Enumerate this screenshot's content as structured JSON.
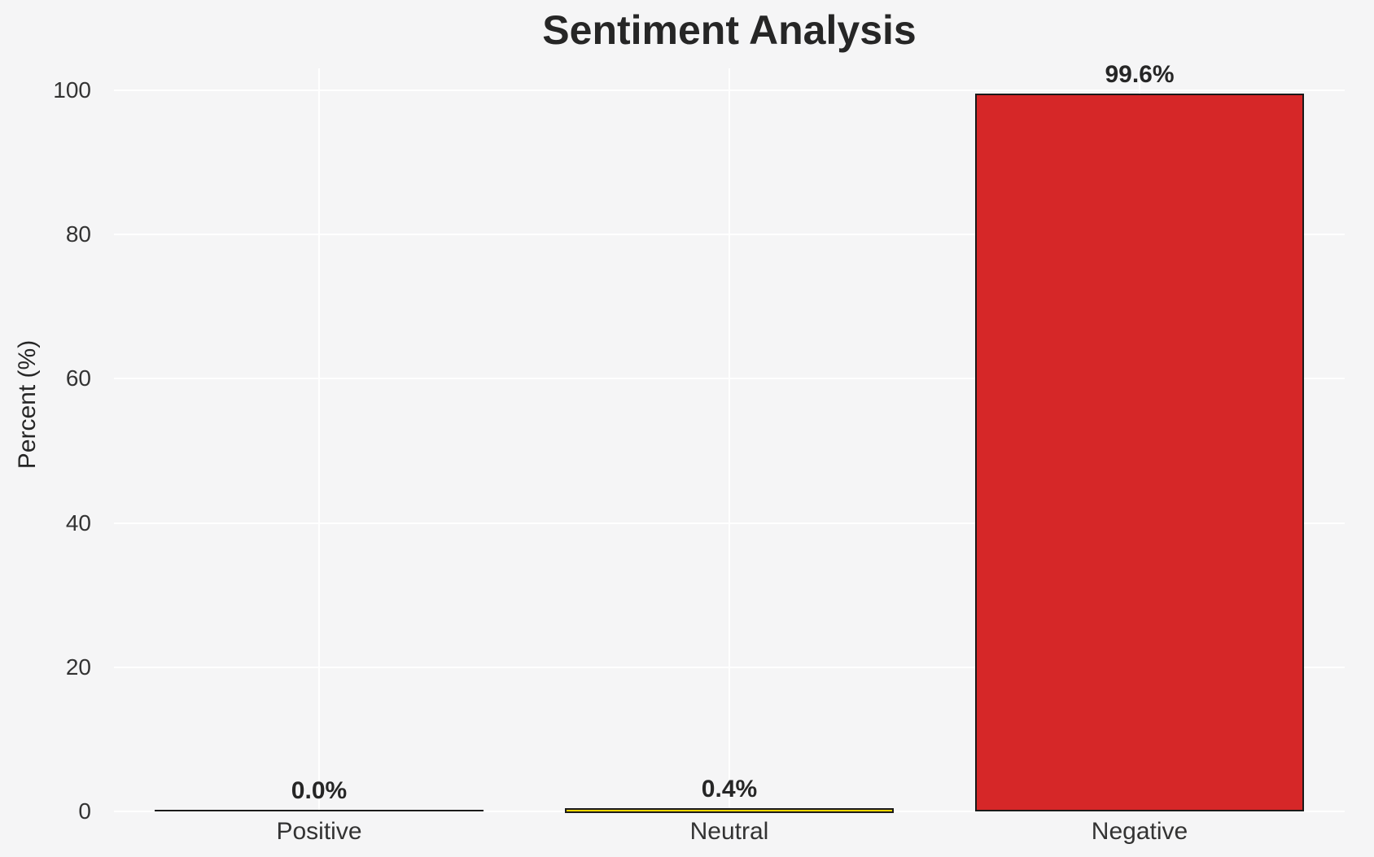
{
  "figure": {
    "background_color": "#f5f5f6",
    "grid_color": "#ffffff",
    "text_color": "#262626",
    "tick_text_color": "#333333",
    "bar_edge_color": "#1a1a1a"
  },
  "chart_data": {
    "type": "bar",
    "title": "Sentiment Analysis",
    "xlabel": "",
    "ylabel": "Percent (%)",
    "categories": [
      "Positive",
      "Neutral",
      "Negative"
    ],
    "values": [
      0.0,
      0.4,
      99.6
    ],
    "value_labels": [
      "0.0%",
      "0.4%",
      "99.6%"
    ],
    "bar_colors": [
      null,
      "#ffd700",
      "#d62728"
    ],
    "yticks": [
      0,
      20,
      40,
      60,
      80,
      100
    ],
    "ytick_labels": [
      "0",
      "20",
      "40",
      "60",
      "80",
      "100"
    ],
    "ylim": [
      0,
      103
    ],
    "grid": "on",
    "legend": "none"
  }
}
